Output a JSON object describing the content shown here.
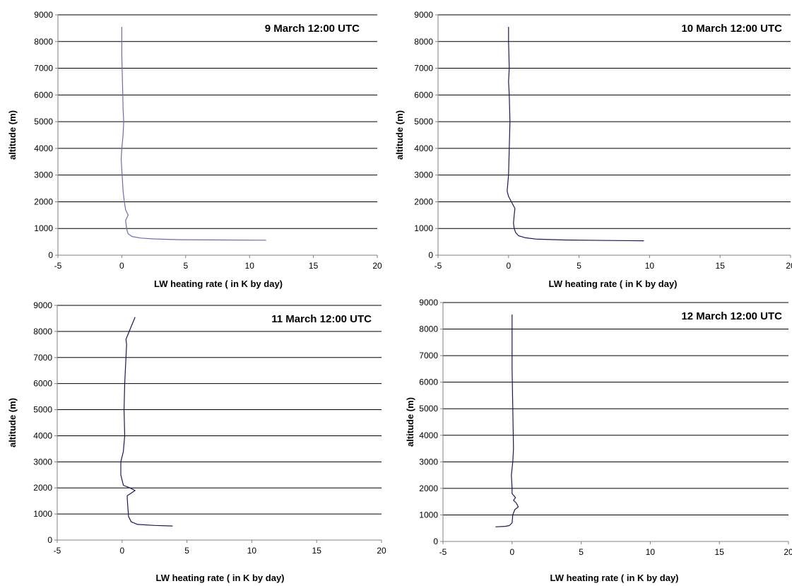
{
  "chart_data": [
    {
      "type": "line",
      "title": "9 March 12:00 UTC",
      "xlabel": "LW heating rate ( in K by day)",
      "ylabel": "altitude (m)",
      "xlim": [
        -5,
        20
      ],
      "ylim": [
        0,
        9000
      ],
      "xticks": [
        -5,
        0,
        5,
        10,
        15,
        20
      ],
      "yticks": [
        0,
        1000,
        2000,
        3000,
        4000,
        5000,
        6000,
        7000,
        8000,
        9000
      ],
      "grid": "horizontal",
      "line_color": "#6b6fa8",
      "series": [
        {
          "x": [
            11.3,
            8.0,
            4.5,
            2.5,
            1.5,
            0.8,
            0.5,
            0.4,
            0.35,
            0.3,
            0.5,
            0.3,
            0.2,
            0.1,
            0.05,
            0.0,
            -0.05,
            0.0,
            0.1,
            0.15,
            0.1,
            0.05,
            0.0,
            0.0,
            0.0
          ],
          "y": [
            560,
            570,
            580,
            610,
            640,
            700,
            800,
            950,
            1100,
            1300,
            1500,
            1700,
            2000,
            2400,
            2800,
            3200,
            3600,
            4000,
            4500,
            5000,
            5500,
            6500,
            7500,
            8000,
            8550
          ]
        }
      ]
    },
    {
      "type": "line",
      "title": "10 March 12:00 UTC",
      "xlabel": "LW heating rate ( in K by day)",
      "ylabel": "altitude (m)",
      "xlim": [
        -5,
        20
      ],
      "ylim": [
        0,
        9000
      ],
      "xticks": [
        -5,
        0,
        5,
        10,
        15,
        20
      ],
      "yticks": [
        0,
        1000,
        2000,
        3000,
        4000,
        5000,
        6000,
        7000,
        8000,
        9000
      ],
      "grid": "horizontal",
      "line_color": "#1a1a55",
      "series": [
        {
          "x": [
            9.6,
            7.0,
            4.0,
            2.0,
            1.2,
            0.7,
            0.5,
            0.4,
            0.35,
            0.4,
            0.45,
            0.2,
            0.0,
            -0.1,
            0.0,
            0.05,
            0.1,
            0.05,
            0.0,
            0.05,
            0.0,
            0.0
          ],
          "y": [
            540,
            550,
            570,
            600,
            650,
            730,
            850,
            1000,
            1200,
            1500,
            1750,
            2000,
            2200,
            2400,
            3000,
            4000,
            5000,
            6000,
            6500,
            7000,
            8000,
            8550
          ]
        }
      ]
    },
    {
      "type": "line",
      "title": "11 March 12:00 UTC",
      "xlabel": "LW heating rate ( in K by day)",
      "ylabel": "altitude (m)",
      "xlim": [
        -5,
        20
      ],
      "ylim": [
        0,
        9000
      ],
      "xticks": [
        -5,
        0,
        5,
        10,
        15,
        20
      ],
      "yticks": [
        0,
        1000,
        2000,
        3000,
        4000,
        5000,
        6000,
        7000,
        8000,
        9000
      ],
      "grid": "horizontal",
      "line_color": "#1a1a55",
      "series": [
        {
          "x": [
            3.9,
            2.5,
            1.2,
            0.7,
            0.5,
            0.45,
            0.4,
            0.4,
            0.7,
            1.0,
            0.6,
            0.1,
            -0.1,
            -0.1,
            0.1,
            0.2,
            0.15,
            0.2,
            0.3,
            0.35,
            0.3,
            1.0
          ],
          "y": [
            540,
            560,
            600,
            700,
            900,
            1200,
            1600,
            1700,
            1800,
            1900,
            2000,
            2100,
            2500,
            3000,
            3400,
            4000,
            5000,
            6000,
            7000,
            7500,
            7700,
            8550
          ]
        }
      ]
    },
    {
      "type": "line",
      "title": "12 March 12:00 UTC",
      "xlabel": "LW heating rate ( in K by day)",
      "ylabel": "altitude (m)",
      "xlim": [
        -5,
        20
      ],
      "ylim": [
        0,
        9000
      ],
      "xticks": [
        -5,
        0,
        5,
        10,
        15,
        20
      ],
      "yticks": [
        0,
        1000,
        2000,
        3000,
        4000,
        5000,
        6000,
        7000,
        8000,
        9000
      ],
      "grid": "horizontal",
      "line_color": "#1a1a55",
      "series": [
        {
          "x": [
            -1.2,
            -0.5,
            -0.2,
            0.0,
            0.05,
            0.2,
            0.45,
            0.3,
            0.1,
            0.25,
            0.0,
            0.0,
            -0.05,
            0.05,
            0.1,
            0.05,
            0.0,
            0.0
          ],
          "y": [
            550,
            570,
            600,
            700,
            1000,
            1200,
            1300,
            1450,
            1550,
            1650,
            1800,
            2000,
            2500,
            3000,
            3500,
            5000,
            6500,
            8550
          ]
        }
      ]
    }
  ]
}
